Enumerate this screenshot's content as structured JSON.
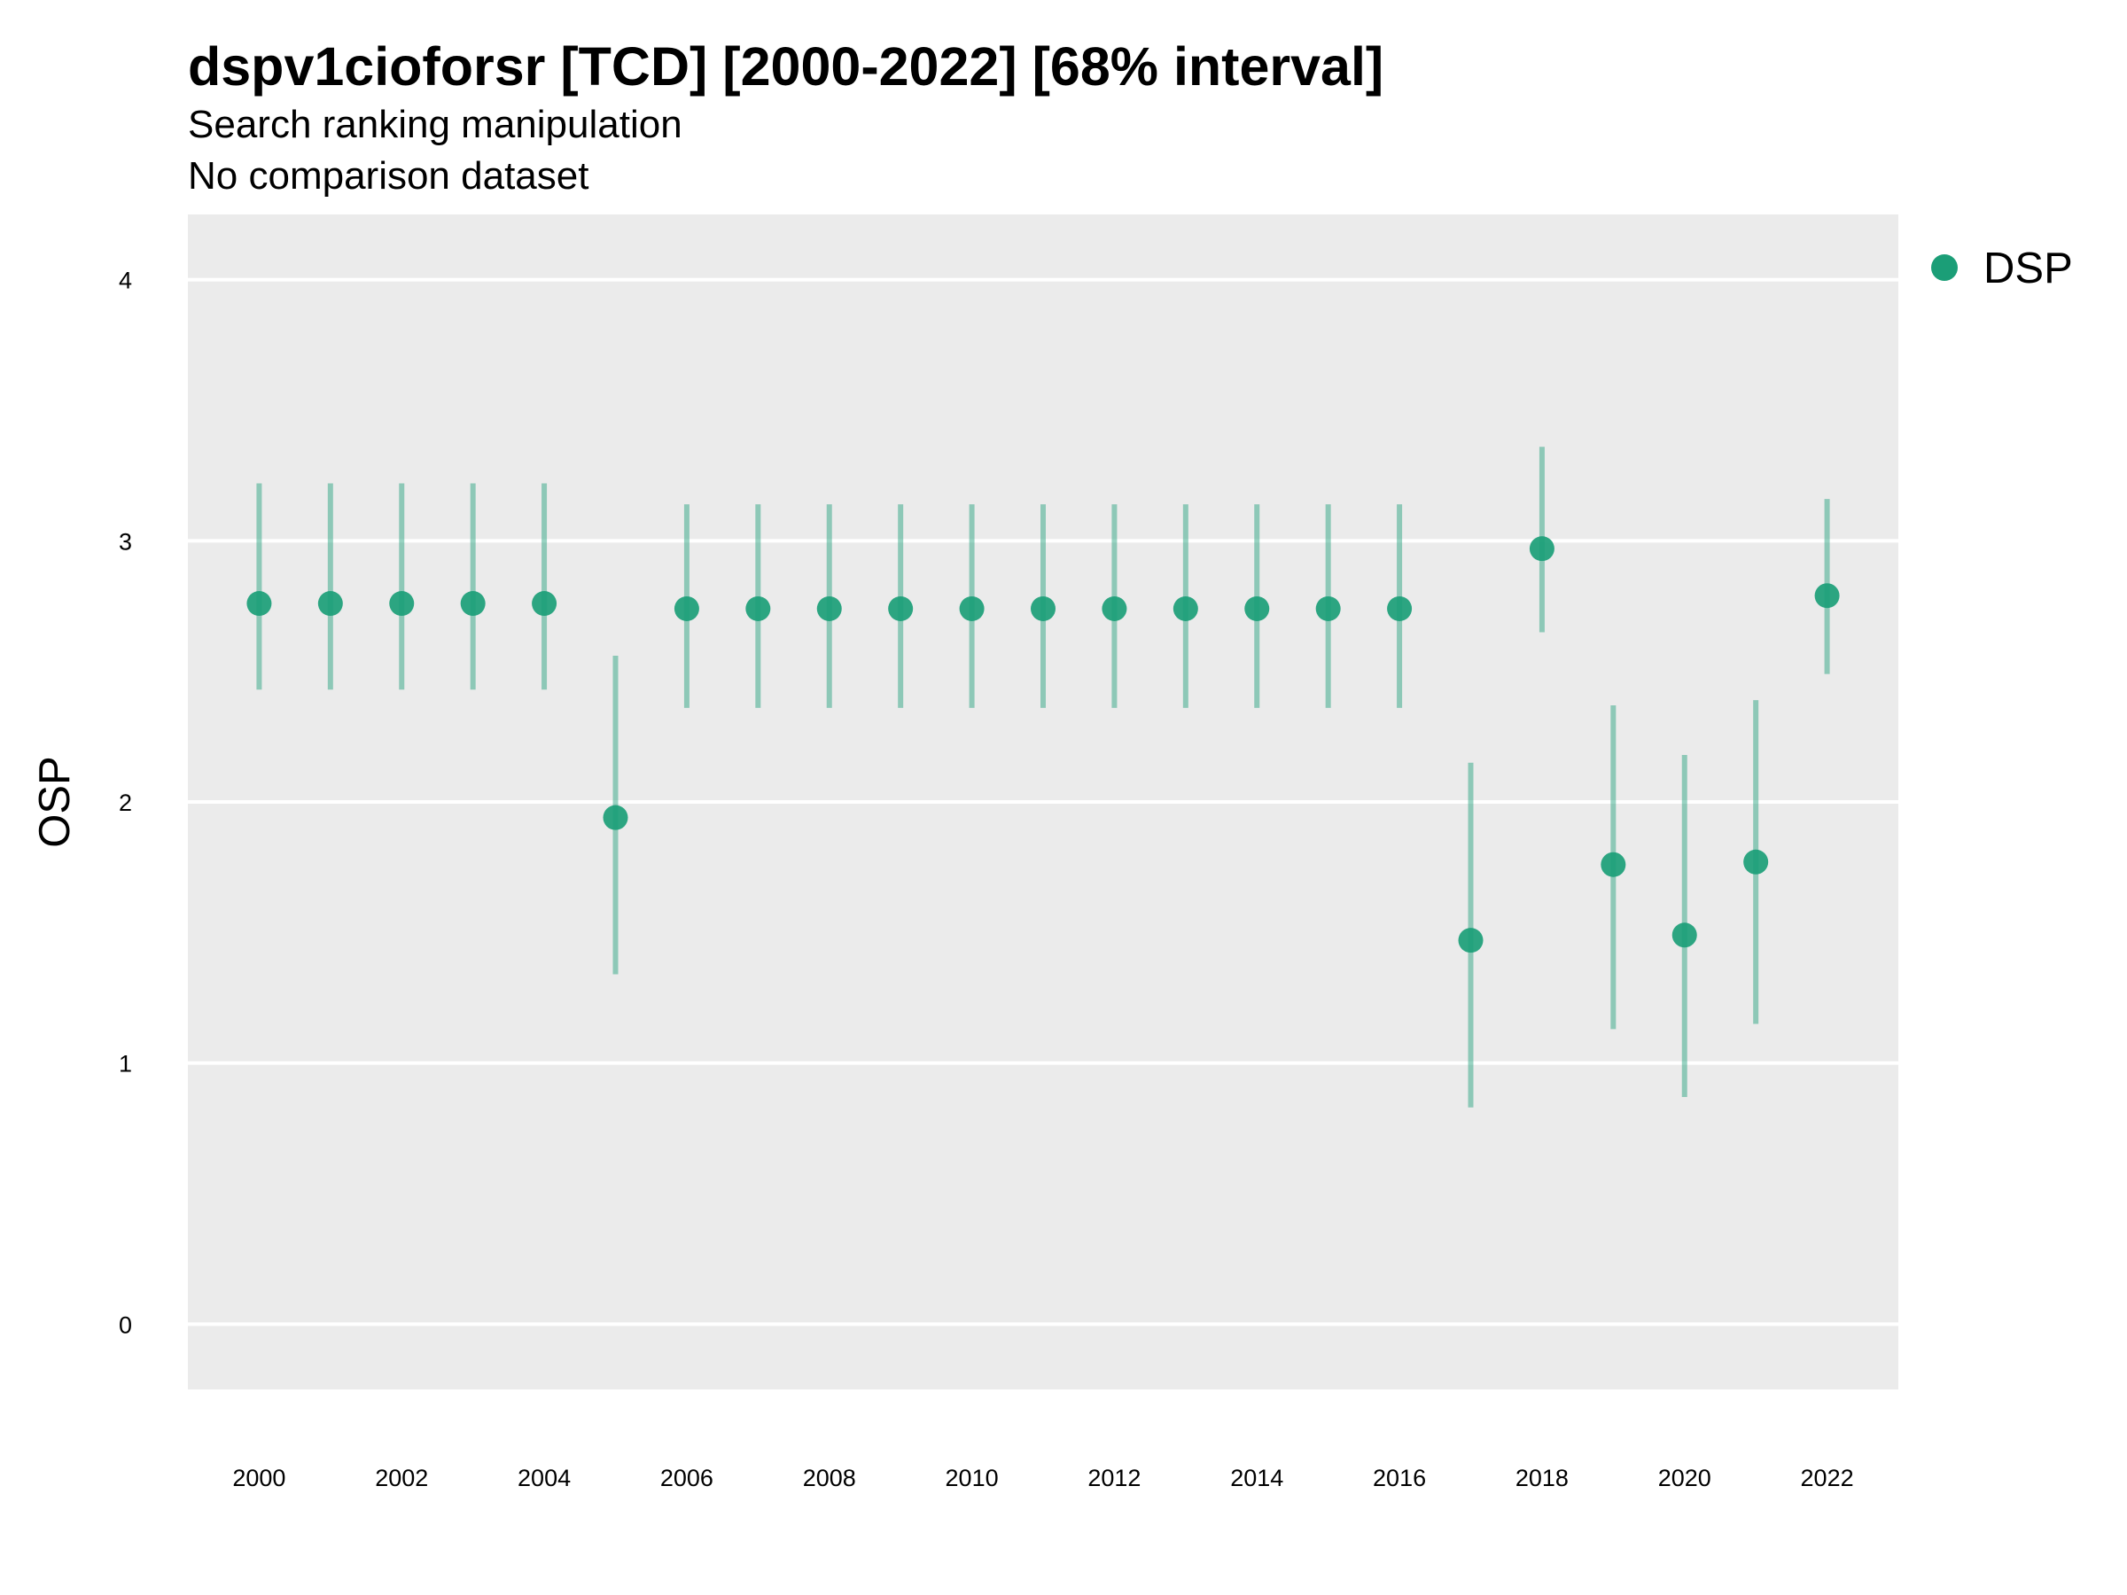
{
  "chart_data": {
    "type": "scatter",
    "title": "dspv1cioforsr [TCD] [2000-2022] [68% interval]",
    "subtitle_lines": [
      "Search ranking manipulation",
      "No comparison dataset"
    ],
    "xlabel": "",
    "ylabel": "OSP",
    "xlim": [
      1999,
      2023
    ],
    "ylim": [
      -0.25,
      4.25
    ],
    "x_ticks": [
      2000,
      2002,
      2004,
      2006,
      2008,
      2010,
      2012,
      2014,
      2016,
      2018,
      2020,
      2022
    ],
    "y_ticks": [
      0,
      1,
      2,
      3,
      4
    ],
    "grid": true,
    "legend_position": "right",
    "series": [
      {
        "name": "DSP",
        "color": "#1b9e77",
        "x": [
          2000,
          2001,
          2002,
          2003,
          2004,
          2005,
          2006,
          2007,
          2008,
          2009,
          2010,
          2011,
          2012,
          2013,
          2014,
          2015,
          2016,
          2017,
          2018,
          2019,
          2020,
          2021,
          2022
        ],
        "y": [
          2.76,
          2.76,
          2.76,
          2.76,
          2.76,
          1.94,
          2.74,
          2.74,
          2.74,
          2.74,
          2.74,
          2.74,
          2.74,
          2.74,
          2.74,
          2.74,
          2.74,
          1.47,
          2.97,
          1.76,
          1.49,
          1.77,
          2.79
        ],
        "lower": [
          2.43,
          2.43,
          2.43,
          2.43,
          2.43,
          1.34,
          2.36,
          2.36,
          2.36,
          2.36,
          2.36,
          2.36,
          2.36,
          2.36,
          2.36,
          2.36,
          2.36,
          0.83,
          2.65,
          1.13,
          0.87,
          1.15,
          2.49
        ],
        "upper": [
          3.22,
          3.22,
          3.22,
          3.22,
          3.22,
          2.56,
          3.14,
          3.14,
          3.14,
          3.14,
          3.14,
          3.14,
          3.14,
          3.14,
          3.14,
          3.14,
          3.14,
          2.15,
          3.36,
          2.37,
          2.18,
          2.39,
          3.16
        ]
      }
    ]
  }
}
